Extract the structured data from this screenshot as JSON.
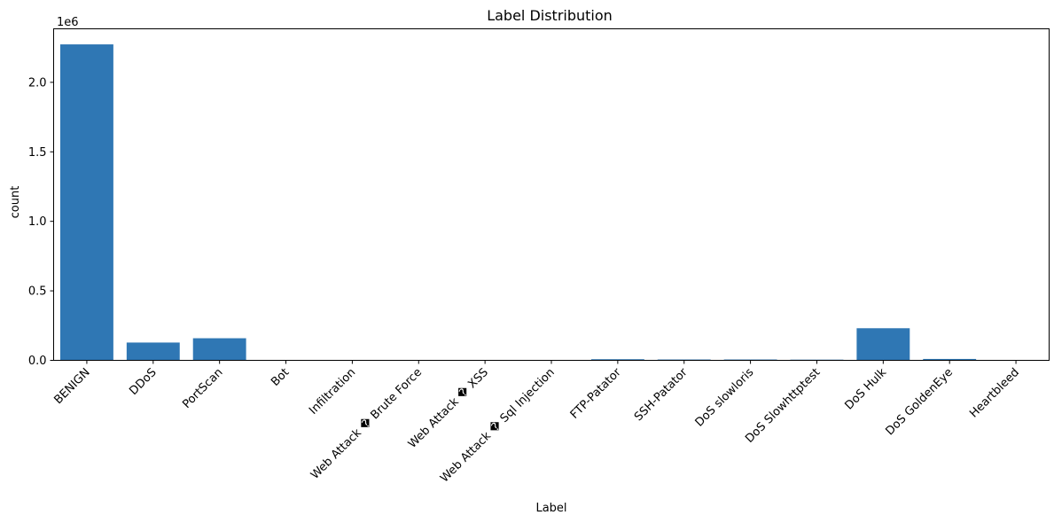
{
  "chart_data": {
    "type": "bar",
    "title": "Label Distribution",
    "xlabel": "Label",
    "ylabel": "count",
    "y_offset_label": "1e6",
    "ylim": [
      0,
      2.385
    ],
    "yticks": [
      0.0,
      0.5,
      1.0,
      1.5,
      2.0
    ],
    "ytick_labels": [
      "0.0",
      "0.5",
      "1.0",
      "1.5",
      "2.0"
    ],
    "categories": [
      "BENIGN",
      "DDoS",
      "PortScan",
      "Bot",
      "Infiltration",
      "Web Attack � Brute Force",
      "Web Attack � XSS",
      "Web Attack � Sql Injection",
      "FTP-Patator",
      "SSH-Patator",
      "DoS slowloris",
      "DoS Slowhttptest",
      "DoS Hulk",
      "DoS GoldenEye",
      "Heartbleed"
    ],
    "values": [
      2.273,
      0.128,
      0.159,
      0.002,
      4e-05,
      0.0015,
      0.0007,
      2e-05,
      0.008,
      0.006,
      0.006,
      0.005,
      0.231,
      0.01,
      1e-05
    ],
    "grid": false,
    "color": "#2f77b4"
  }
}
